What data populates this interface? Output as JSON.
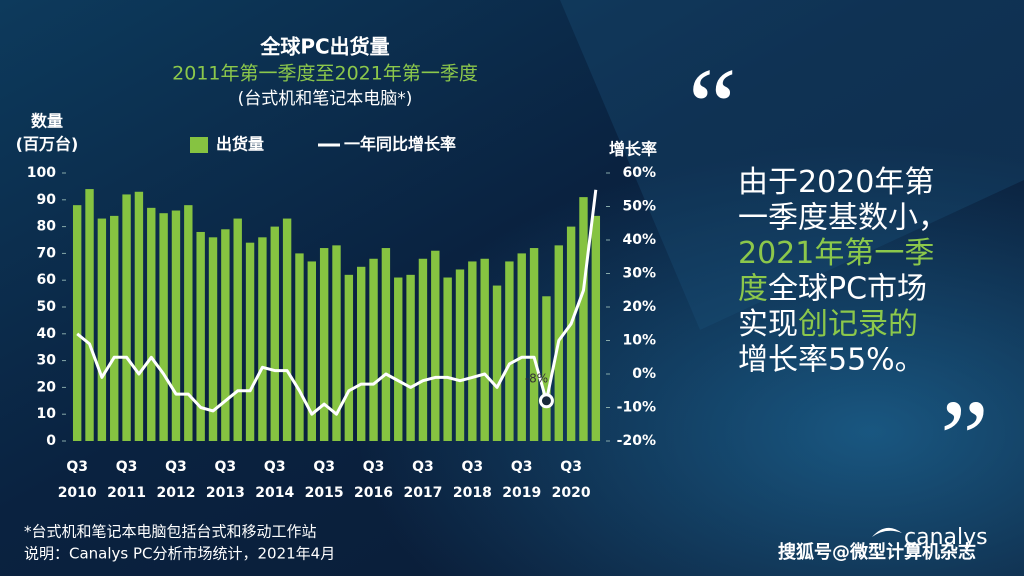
{
  "chart_data": {
    "type": "bar-line",
    "title": "全球PC出货量",
    "subtitle": "2011年第一季度至2021年第一季度",
    "note": "(台式机和笔记本电脑*)",
    "y_label": [
      "数量",
      "(百万台)"
    ],
    "y2_label": "增长率",
    "categories": [
      "Q3",
      null,
      null,
      null,
      "Q3",
      null,
      null,
      null,
      "Q3",
      null,
      null,
      null,
      "Q3",
      null,
      null,
      null,
      "Q3",
      null,
      null,
      null,
      "Q3",
      null,
      null,
      null,
      "Q3",
      null,
      null,
      null,
      "Q3",
      null,
      null,
      null,
      "Q3",
      null,
      null,
      null,
      "Q3",
      null,
      null,
      null,
      "Q3",
      null,
      null
    ],
    "year_labels": [
      "2010",
      "2011",
      "2012",
      "2013",
      "2014",
      "2015",
      "2016",
      "2017",
      "2018",
      "2019",
      "2020"
    ],
    "series": [
      {
        "name": "出货量",
        "type": "bar",
        "color": "#86c341",
        "values": [
          88,
          94,
          83,
          84,
          92,
          93,
          87,
          85,
          86,
          88,
          78,
          76,
          79,
          83,
          74,
          76,
          80,
          83,
          70,
          67,
          72,
          73,
          62,
          65,
          68,
          72,
          61,
          62,
          68,
          71,
          61,
          64,
          67,
          68,
          58,
          67,
          70,
          72,
          54,
          73,
          80,
          91,
          84
        ]
      },
      {
        "name": "一年同比增长率",
        "type": "line",
        "axis": "y2",
        "color": "#ffffff",
        "values": [
          12,
          9,
          -1,
          5,
          5,
          0,
          5,
          0,
          -6,
          -6,
          -10,
          -11,
          -8,
          -5,
          -5,
          2,
          1,
          1,
          -5,
          -12,
          -9,
          -12,
          -5,
          -3,
          -3,
          0,
          -2,
          -4,
          -2,
          -1,
          -1,
          -2,
          -1,
          0,
          -4,
          3,
          5,
          5,
          -8,
          10,
          15,
          25,
          55
        ],
        "value_labels": [
          null,
          null,
          null,
          null,
          null,
          null,
          null,
          null,
          null,
          null,
          null,
          null,
          null,
          null,
          null,
          null,
          null,
          null,
          null,
          null,
          null,
          null,
          null,
          null,
          null,
          null,
          null,
          null,
          null,
          null,
          null,
          null,
          null,
          null,
          null,
          null,
          null,
          null,
          "-8%",
          null,
          null,
          null,
          null
        ]
      }
    ],
    "ylim": [
      0,
      100
    ],
    "yticks": [
      0,
      10,
      20,
      30,
      40,
      50,
      60,
      70,
      80,
      90,
      100
    ],
    "y2lim": [
      -20,
      60
    ],
    "y2ticks": [
      {
        "value": -20,
        "label": "-20%"
      },
      {
        "value": -10,
        "label": "-10%"
      },
      {
        "value": 0,
        "label": "0%"
      },
      {
        "value": 10,
        "label": "10%"
      },
      {
        "value": 20,
        "label": "20%"
      },
      {
        "value": 30,
        "label": "30%"
      },
      {
        "value": 40,
        "label": "40%"
      },
      {
        "value": 50,
        "label": "50%"
      },
      {
        "value": 60,
        "label": "60%"
      }
    ]
  },
  "quote": {
    "open": "“",
    "close": "”",
    "lines": [
      [
        {
          "text": "由于2020年第",
          "color": "#ffffff"
        }
      ],
      [
        {
          "text": "一季度基数小，",
          "color": "#ffffff"
        }
      ],
      [
        {
          "text": "2021年第一季",
          "color": "#8cc84b"
        }
      ],
      [
        {
          "text": "度",
          "color": "#8cc84b"
        },
        {
          "text": "全球PC市场",
          "color": "#ffffff"
        }
      ],
      [
        {
          "text": "实现",
          "color": "#ffffff"
        },
        {
          "text": "创记录的",
          "color": "#8cc84b"
        }
      ],
      [
        {
          "text": "增长率55%。",
          "color": "#ffffff"
        }
      ]
    ]
  },
  "footnotes": [
    "*台式机和笔记本电脑包括台式和移动工作站",
    "说明：Canalys PC分析市场统计，2021年4月"
  ],
  "logo": "canalys",
  "watermark": "搜狐号@微型计算机杂志"
}
